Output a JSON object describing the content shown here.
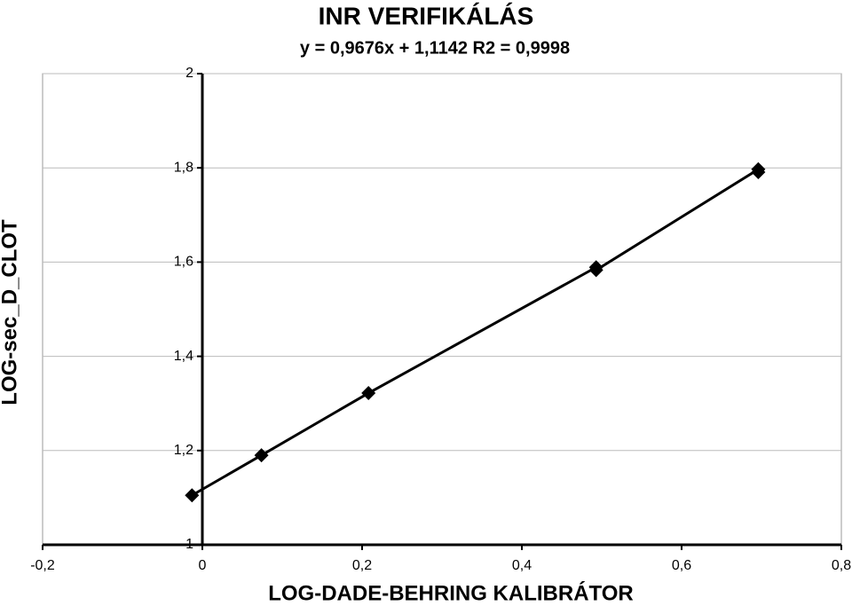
{
  "chart_data": {
    "type": "scatter",
    "title": "INR VERIFIKÁLÁS",
    "subtitle": "y = 0,9676x + 1,1142 R2 = 0,9998",
    "x_label": "LOG-DADE-BEHRING KALIBRÁTOR",
    "y_label": "LOG-sec_D_CLOT",
    "series": [
      {
        "name": "LOG-sec_D_CLOT",
        "color": "#000000",
        "x": [
          -0.013,
          0.074,
          0.208,
          0.493,
          0.493,
          0.696,
          0.696
        ],
        "values": [
          1.105,
          1.19,
          1.322,
          1.589,
          1.583,
          1.797,
          1.791
        ]
      }
    ],
    "xlim": [
      -0.2,
      0.8
    ],
    "xticks": [
      {
        "value": -0.2,
        "label": "-0,2"
      },
      0,
      {
        "value": 0.2,
        "label": "0,2"
      },
      {
        "value": 0.4,
        "label": "0,4"
      },
      {
        "value": 0.6,
        "label": "0,6"
      },
      {
        "value": 0.8,
        "label": "0,8"
      }
    ],
    "ylim": [
      1,
      2
    ],
    "yticks": [
      1,
      {
        "value": 1.2,
        "label": "1,2"
      },
      {
        "value": 1.4,
        "label": "1,4"
      },
      {
        "value": 1.6,
        "label": "1,6"
      },
      {
        "value": 1.8,
        "label": "1,8"
      },
      2
    ],
    "grid": true
  }
}
